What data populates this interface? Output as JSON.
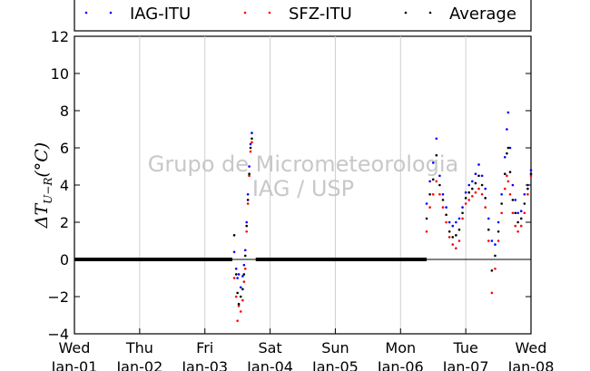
{
  "chart_data": {
    "type": "scatter",
    "title": "",
    "xlabel": "",
    "ylabel": "ΔT",
    "ylabel_subscript": "U−R",
    "ylabel_unit": "(°C)",
    "ylim": [
      -4,
      12
    ],
    "yticks": [
      -4,
      -2,
      0,
      2,
      4,
      6,
      8,
      10,
      12
    ],
    "ytick_labels": [
      "−4",
      "−2",
      "0",
      "2",
      "4",
      "6",
      "8",
      "10",
      "12"
    ],
    "xlim": [
      0,
      7
    ],
    "xticks": [
      0,
      1,
      2,
      3,
      4,
      5,
      6,
      7
    ],
    "xtick_labels": [
      [
        "Wed",
        "Jan-01"
      ],
      [
        "Thu",
        "Jan-02"
      ],
      [
        "Fri",
        "Jan-03"
      ],
      [
        "Sat",
        "Jan-04"
      ],
      [
        "Sun",
        "Jan-05"
      ],
      [
        "Mon",
        "Jan-06"
      ],
      [
        "Tue",
        "Jan-07"
      ],
      [
        "Wed",
        "Jan-08"
      ]
    ],
    "grid_x": true,
    "grid_y": false,
    "zero_line": true,
    "legend_position": "top",
    "watermark": [
      "Grupo de Micrometeorologia",
      "IAG / USP"
    ],
    "series": [
      {
        "name": "IAG-ITU",
        "color": "#0000ff",
        "key": "iag",
        "points": [
          [
            2.45,
            0.4
          ],
          [
            2.48,
            -0.5
          ],
          [
            2.5,
            -1.0
          ],
          [
            2.52,
            -0.8
          ],
          [
            2.55,
            -1.5
          ],
          [
            2.58,
            -0.9
          ],
          [
            2.6,
            -0.3
          ],
          [
            2.62,
            0.5
          ],
          [
            2.64,
            2.0
          ],
          [
            2.66,
            3.5
          ],
          [
            2.68,
            5.0
          ],
          [
            2.7,
            6.2
          ],
          [
            2.72,
            6.8
          ],
          [
            5.4,
            3.0
          ],
          [
            5.45,
            4.2
          ],
          [
            5.5,
            5.2
          ],
          [
            5.55,
            6.5
          ],
          [
            5.6,
            4.5
          ],
          [
            5.65,
            3.5
          ],
          [
            5.7,
            2.8
          ],
          [
            5.75,
            2.0
          ],
          [
            5.8,
            1.8
          ],
          [
            5.85,
            2.0
          ],
          [
            5.9,
            2.2
          ],
          [
            5.95,
            2.8
          ],
          [
            6.0,
            3.6
          ],
          [
            6.05,
            4.0
          ],
          [
            6.1,
            4.2
          ],
          [
            6.15,
            4.6
          ],
          [
            6.2,
            5.1
          ],
          [
            6.25,
            4.5
          ],
          [
            6.3,
            3.8
          ],
          [
            6.35,
            2.2
          ],
          [
            6.4,
            1.0
          ],
          [
            6.45,
            0.8
          ],
          [
            6.5,
            2.0
          ],
          [
            6.55,
            3.5
          ],
          [
            6.6,
            5.5
          ],
          [
            6.63,
            7.0
          ],
          [
            6.65,
            7.9
          ],
          [
            6.68,
            6.0
          ],
          [
            6.72,
            4.0
          ],
          [
            6.76,
            3.2
          ],
          [
            6.8,
            2.5
          ],
          [
            6.85,
            2.6
          ],
          [
            6.9,
            3.5
          ],
          [
            6.95,
            4.0
          ],
          [
            7.0,
            4.8
          ]
        ]
      },
      {
        "name": "SFZ-ITU",
        "color": "#ff0000",
        "key": "sfz",
        "points": [
          [
            2.45,
            -1.0
          ],
          [
            2.48,
            -2.0
          ],
          [
            2.5,
            -3.3
          ],
          [
            2.52,
            -2.5
          ],
          [
            2.55,
            -2.8
          ],
          [
            2.58,
            -2.2
          ],
          [
            2.6,
            -1.2
          ],
          [
            2.62,
            -0.5
          ],
          [
            2.64,
            1.5
          ],
          [
            2.66,
            3.0
          ],
          [
            2.68,
            4.5
          ],
          [
            2.7,
            5.8
          ],
          [
            2.72,
            6.3
          ],
          [
            5.4,
            1.5
          ],
          [
            5.45,
            2.8
          ],
          [
            5.5,
            3.5
          ],
          [
            5.55,
            4.2
          ],
          [
            5.6,
            3.5
          ],
          [
            5.65,
            2.8
          ],
          [
            5.7,
            2.0
          ],
          [
            5.75,
            1.2
          ],
          [
            5.8,
            0.8
          ],
          [
            5.85,
            0.6
          ],
          [
            5.9,
            1.0
          ],
          [
            5.95,
            2.2
          ],
          [
            6.0,
            3.0
          ],
          [
            6.05,
            3.2
          ],
          [
            6.1,
            3.4
          ],
          [
            6.15,
            3.6
          ],
          [
            6.2,
            3.8
          ],
          [
            6.25,
            3.5
          ],
          [
            6.3,
            2.8
          ],
          [
            6.35,
            1.0
          ],
          [
            6.4,
            -1.8
          ],
          [
            6.45,
            -0.5
          ],
          [
            6.5,
            1.0
          ],
          [
            6.55,
            2.5
          ],
          [
            6.6,
            3.8
          ],
          [
            6.63,
            4.5
          ],
          [
            6.65,
            4.2
          ],
          [
            6.68,
            3.5
          ],
          [
            6.72,
            2.5
          ],
          [
            6.76,
            1.8
          ],
          [
            6.8,
            1.5
          ],
          [
            6.85,
            1.8
          ],
          [
            6.9,
            2.5
          ],
          [
            6.95,
            3.5
          ],
          [
            7.0,
            4.5
          ]
        ]
      },
      {
        "name": "Average",
        "color": "#000000",
        "key": "avg",
        "points": [
          [
            2.45,
            1.3
          ],
          [
            2.48,
            -0.8
          ],
          [
            2.5,
            -1.8
          ],
          [
            2.52,
            -2.4
          ],
          [
            2.55,
            -2.0
          ],
          [
            2.58,
            -1.6
          ],
          [
            2.6,
            -0.8
          ],
          [
            2.62,
            0.2
          ],
          [
            2.64,
            1.8
          ],
          [
            2.66,
            3.2
          ],
          [
            2.68,
            4.6
          ],
          [
            2.7,
            6.0
          ],
          [
            2.72,
            6.5
          ],
          [
            5.4,
            2.2
          ],
          [
            5.45,
            3.5
          ],
          [
            5.5,
            4.3
          ],
          [
            5.55,
            5.6
          ],
          [
            5.6,
            4.0
          ],
          [
            5.65,
            3.2
          ],
          [
            5.7,
            2.4
          ],
          [
            5.75,
            1.5
          ],
          [
            5.8,
            1.2
          ],
          [
            5.85,
            1.3
          ],
          [
            5.9,
            1.6
          ],
          [
            5.95,
            2.5
          ],
          [
            6.0,
            3.3
          ],
          [
            6.05,
            3.6
          ],
          [
            6.1,
            3.8
          ],
          [
            6.15,
            4.1
          ],
          [
            6.2,
            4.5
          ],
          [
            6.25,
            4.0
          ],
          [
            6.3,
            3.3
          ],
          [
            6.35,
            1.6
          ],
          [
            6.4,
            -0.6
          ],
          [
            6.45,
            0.2
          ],
          [
            6.5,
            1.5
          ],
          [
            6.55,
            3.0
          ],
          [
            6.6,
            4.6
          ],
          [
            6.63,
            5.7
          ],
          [
            6.65,
            6.0
          ],
          [
            6.68,
            4.7
          ],
          [
            6.72,
            3.2
          ],
          [
            6.76,
            2.5
          ],
          [
            6.8,
            2.0
          ],
          [
            6.85,
            2.2
          ],
          [
            6.9,
            3.0
          ],
          [
            6.95,
            3.8
          ],
          [
            7.0,
            4.6
          ]
        ]
      }
    ],
    "baseline_segments": [
      [
        0,
        2.42
      ],
      [
        2.78,
        5.4
      ]
    ]
  }
}
